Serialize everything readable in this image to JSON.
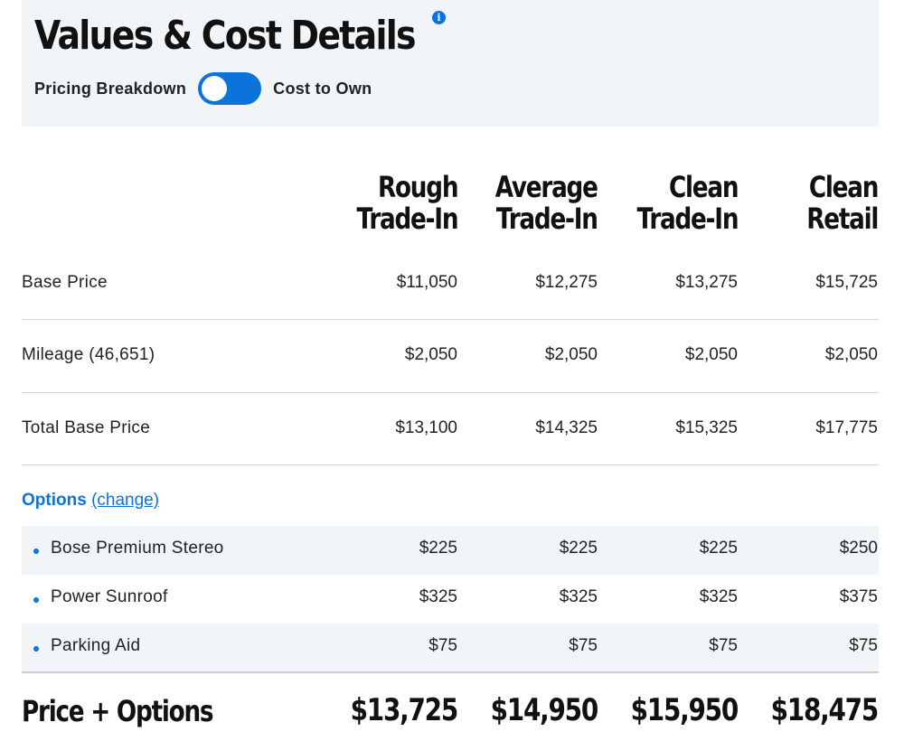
{
  "header": {
    "title": "Values & Cost Details",
    "info_icon": "info-icon",
    "toggle_left_label": "Pricing Breakdown",
    "toggle_right_label": "Cost to Own",
    "accent_color": "#0b73d9"
  },
  "columns": [
    {
      "line1": "Rough",
      "line2": "Trade-In"
    },
    {
      "line1": "Average",
      "line2": "Trade-In"
    },
    {
      "line1": "Clean",
      "line2": "Trade-In"
    },
    {
      "line1": "Clean",
      "line2": "Retail"
    }
  ],
  "rows": [
    {
      "label": "Base Price",
      "values": [
        "$11,050",
        "$12,275",
        "$13,275",
        "$15,725"
      ]
    },
    {
      "label": "Mileage (46,651)",
      "values": [
        "$2,050",
        "$2,050",
        "$2,050",
        "$2,050"
      ]
    },
    {
      "label": "Total Base Price",
      "values": [
        "$13,100",
        "$14,325",
        "$15,325",
        "$17,775"
      ]
    }
  ],
  "options": {
    "heading": "Options",
    "change_link": "(change)",
    "items": [
      {
        "label": "Bose Premium Stereo",
        "values": [
          "$225",
          "$225",
          "$225",
          "$250"
        ]
      },
      {
        "label": "Power Sunroof",
        "values": [
          "$325",
          "$325",
          "$325",
          "$375"
        ]
      },
      {
        "label": "Parking Aid",
        "values": [
          "$75",
          "$75",
          "$75",
          "$75"
        ]
      }
    ]
  },
  "total": {
    "label": "Price + Options",
    "values": [
      "$13,725",
      "$14,950",
      "$15,950",
      "$18,475"
    ]
  }
}
